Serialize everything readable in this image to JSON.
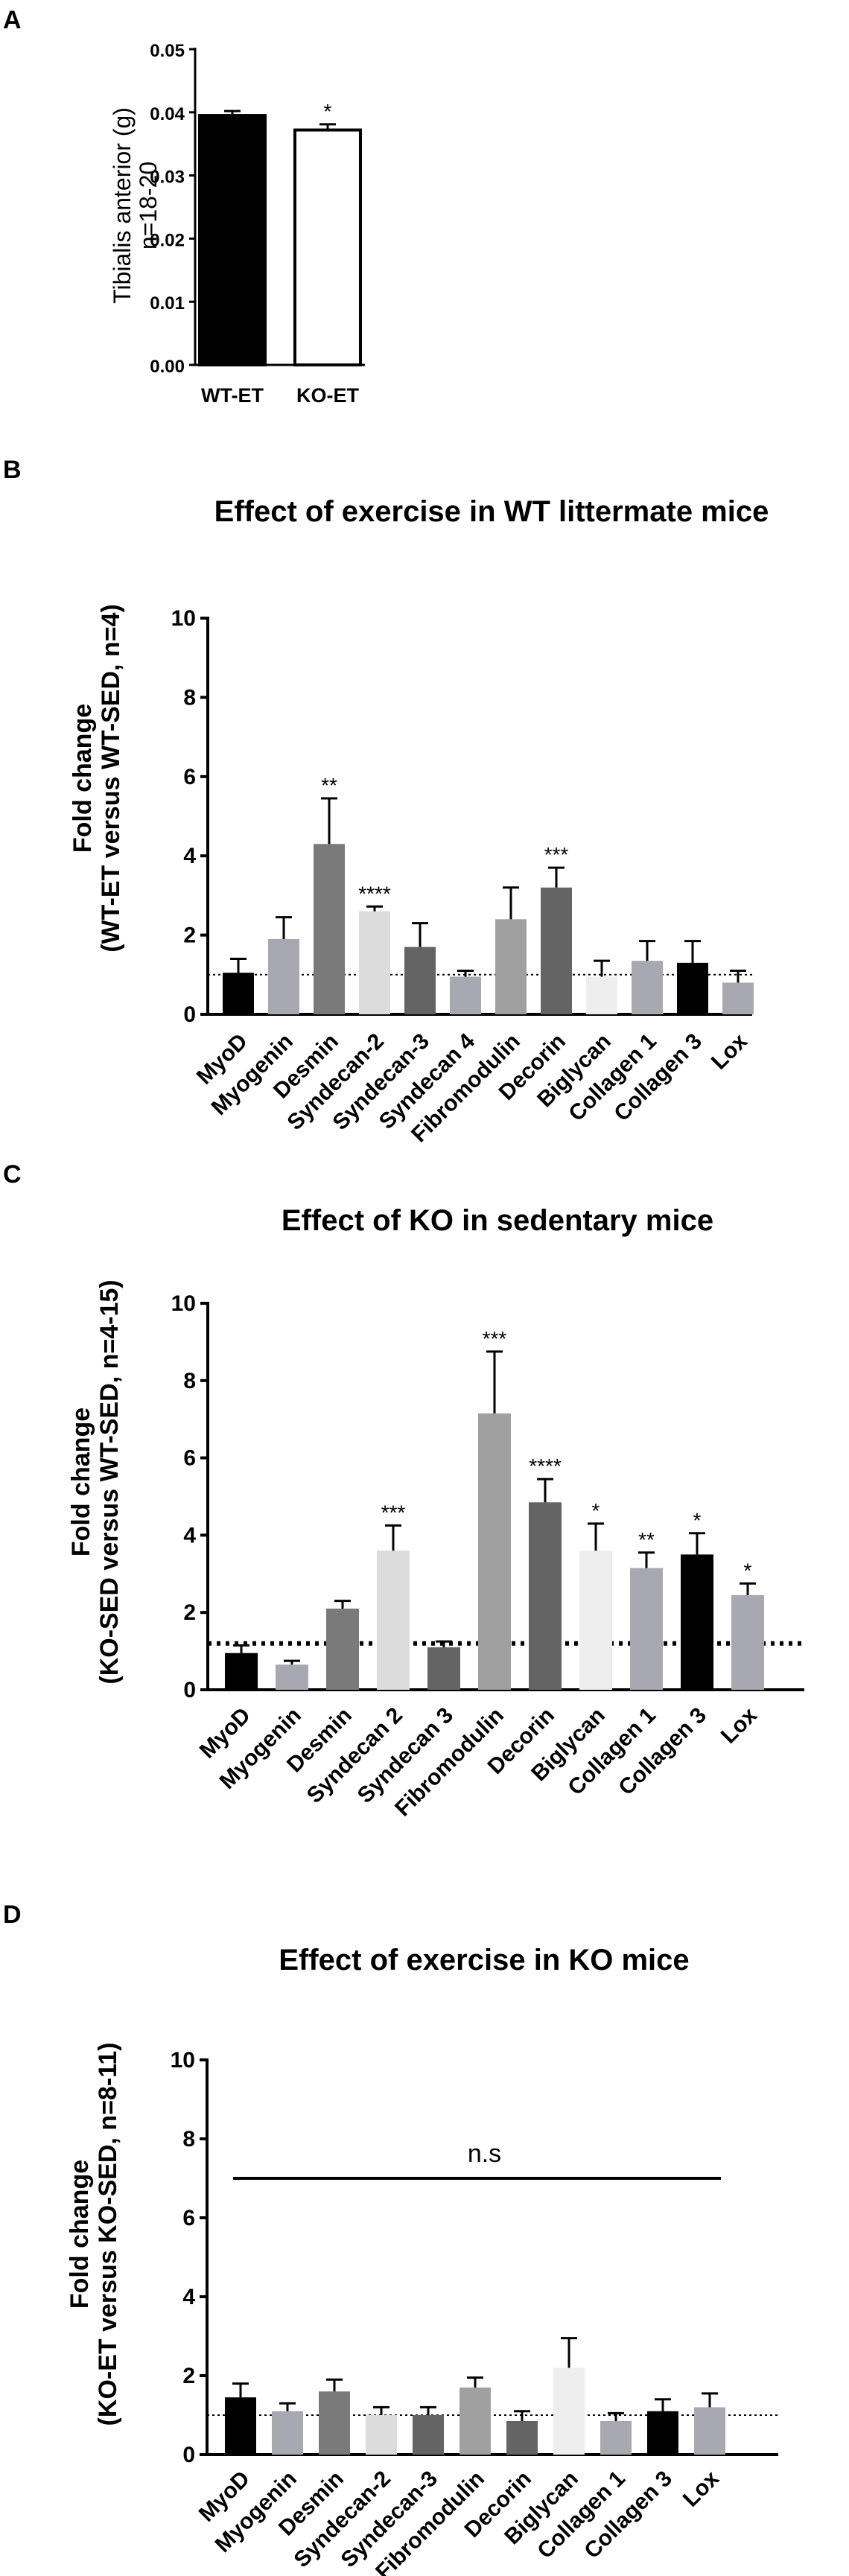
{
  "panels": {
    "a": {
      "letter": "A"
    },
    "b": {
      "letter": "B"
    },
    "c": {
      "letter": "C"
    },
    "d": {
      "letter": "D"
    }
  },
  "chart_data": [
    {
      "id": "a",
      "type": "bar",
      "title": "",
      "ylabel": [
        "Tibialis anterior (g)",
        "n=18-20"
      ],
      "ylim": [
        0,
        0.05
      ],
      "yticks": [
        "0.00",
        "0.01",
        "0.02",
        "0.03",
        "0.04",
        "0.05"
      ],
      "categories": [
        "WT-ET",
        "KO-ET"
      ],
      "values": [
        0.0395,
        0.0372
      ],
      "errors": [
        0.0007,
        0.0009
      ],
      "significance": [
        "",
        "*"
      ],
      "colors": [
        "#000000",
        "#ffffff"
      ]
    },
    {
      "id": "b",
      "type": "bar",
      "title": "Effect of exercise in WT littermate mice",
      "ylabel": [
        "Fold change",
        "(WT-ET versus WT-SED, n=4)"
      ],
      "ylim": [
        0,
        10
      ],
      "yticks": [
        "0",
        "2",
        "4",
        "6",
        "8",
        "10"
      ],
      "reference_line": 1,
      "categories": [
        "MyoD",
        "Myogenin",
        "Desmin",
        "Syndecan-2",
        "Syndecan-3",
        "Syndecan 4",
        "Fibromodulin",
        "Decorin",
        "Biglycan",
        "Collagen 1",
        "Collagen 3",
        "Lox"
      ],
      "values": [
        1.05,
        1.9,
        4.3,
        2.6,
        1.7,
        0.95,
        2.4,
        3.2,
        0.95,
        1.35,
        1.3,
        0.8
      ],
      "errors": [
        0.35,
        0.55,
        1.15,
        0.12,
        0.6,
        0.15,
        0.8,
        0.5,
        0.4,
        0.5,
        0.55,
        0.3
      ],
      "significance": [
        "",
        "",
        "**",
        "****",
        "",
        "",
        "",
        "***",
        "",
        "",
        "",
        ""
      ],
      "colors": [
        "#000000",
        "#a8a8b0",
        "#7a7a7a",
        "#dcdcdc",
        "#646464",
        "#a8a8b0",
        "#a0a0a0",
        "#646464",
        "#eeeeee",
        "#a8a8b0",
        "#000000",
        "#a8a8b0"
      ]
    },
    {
      "id": "c",
      "type": "bar",
      "title": "Effect of KO in sedentary mice",
      "ylabel": [
        "Fold change",
        "(KO-SED versus WT-SED, n=4-15)"
      ],
      "ylim": [
        0,
        10
      ],
      "yticks": [
        "0",
        "2",
        "4",
        "6",
        "8",
        "10"
      ],
      "reference_line": 1.2,
      "categories": [
        "MyoD",
        "Myogenin",
        "Desmin",
        "Syndecan 2",
        "Syndecan 3",
        "Fibromodulin",
        "Decorin",
        "Biglycan",
        "Collagen 1",
        "Collagen 3",
        "Lox"
      ],
      "values": [
        0.95,
        0.65,
        2.1,
        3.6,
        1.1,
        7.15,
        4.85,
        3.6,
        3.15,
        3.5,
        2.45
      ],
      "errors": [
        0.2,
        0.1,
        0.2,
        0.65,
        0.15,
        1.6,
        0.6,
        0.7,
        0.4,
        0.55,
        0.3
      ],
      "significance": [
        "",
        "",
        "",
        "***",
        "",
        "***",
        "****",
        "*",
        "**",
        "*",
        "*"
      ],
      "colors": [
        "#000000",
        "#a8a8b0",
        "#7a7a7a",
        "#dcdcdc",
        "#646464",
        "#a0a0a0",
        "#646464",
        "#eeeeee",
        "#a8a8b0",
        "#000000",
        "#a8a8b0"
      ]
    },
    {
      "id": "d",
      "type": "bar",
      "title": "Effect of exercise in KO mice",
      "ylabel": [
        "Fold change",
        "(KO-ET versus KO-SED, n=8-11)"
      ],
      "ylim": [
        0,
        10
      ],
      "yticks": [
        "0",
        "2",
        "4",
        "6",
        "8",
        "10"
      ],
      "reference_line": 1,
      "ns_value": 7,
      "ns_label": "n.s",
      "categories": [
        "MyoD",
        "Myogenin",
        "Desmin",
        "Syndecan-2",
        "Syndecan-3",
        "Fibromodulin",
        "Decorin",
        "Biglycan",
        "Collagen 1",
        "Collagen 3",
        "Lox"
      ],
      "values": [
        1.45,
        1.1,
        1.6,
        1.0,
        1.0,
        1.7,
        0.85,
        2.2,
        0.85,
        1.1,
        1.2
      ],
      "errors": [
        0.35,
        0.2,
        0.3,
        0.2,
        0.2,
        0.25,
        0.25,
        0.75,
        0.2,
        0.3,
        0.35
      ],
      "significance": [
        "",
        "",
        "",
        "",
        "",
        "",
        "",
        "",
        "",
        "",
        ""
      ],
      "colors": [
        "#000000",
        "#a8a8b0",
        "#7a7a7a",
        "#dcdcdc",
        "#646464",
        "#a0a0a0",
        "#646464",
        "#eeeeee",
        "#a8a8b0",
        "#000000",
        "#a8a8b0"
      ]
    }
  ]
}
